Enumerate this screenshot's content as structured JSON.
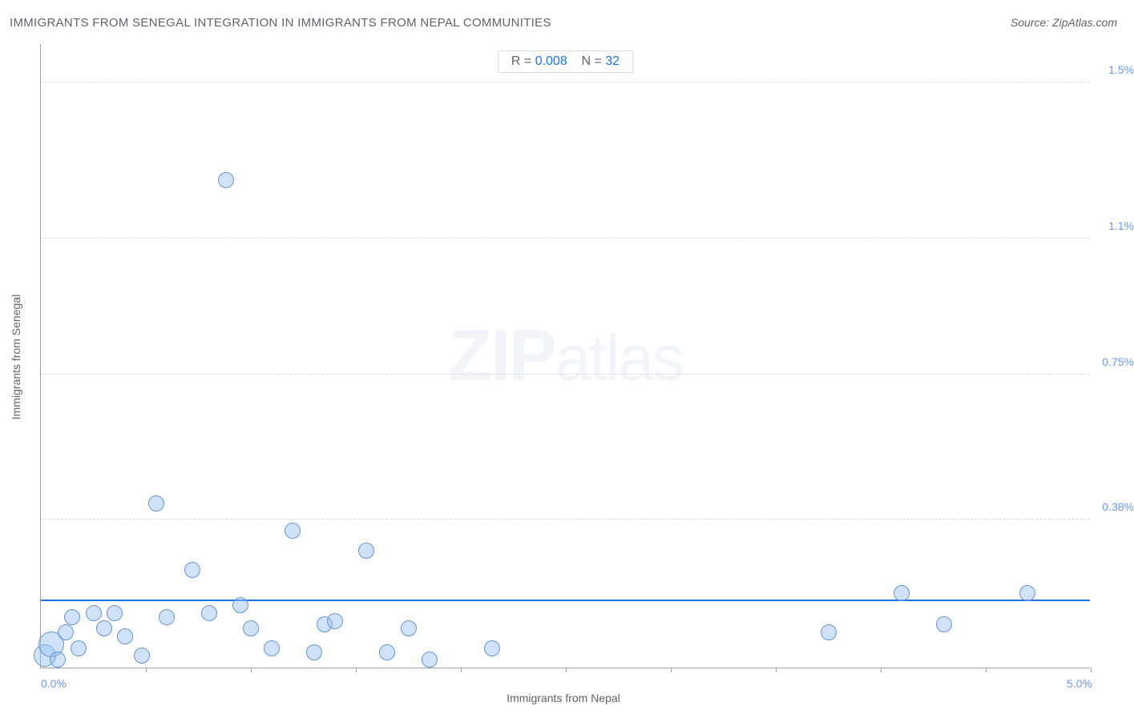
{
  "title": "IMMIGRANTS FROM SENEGAL INTEGRATION IN IMMIGRANTS FROM NEPAL COMMUNITIES",
  "source_prefix": "Source: ",
  "source_name": "ZipAtlas.com",
  "watermark_bold": "ZIP",
  "watermark_light": "atlas",
  "chart": {
    "type": "scatter",
    "xlabel": "Immigrants from Nepal",
    "ylabel": "Immigrants from Senegal",
    "xlim": [
      0.0,
      5.0
    ],
    "ylim": [
      0.0,
      1.6
    ],
    "x_ticks": [
      0.5,
      1.0,
      1.5,
      2.0,
      2.5,
      3.0,
      3.5,
      4.0,
      4.5,
      5.0
    ],
    "x_tick_labels": [
      {
        "x": 0.0,
        "label": "0.0%"
      },
      {
        "x": 5.0,
        "label": "5.0%"
      }
    ],
    "y_gridlines": [
      0.38,
      0.75,
      1.1,
      1.5
    ],
    "y_tick_labels": [
      {
        "y": 0.38,
        "label": "0.38%"
      },
      {
        "y": 0.75,
        "label": "0.75%"
      },
      {
        "y": 1.1,
        "label": "1.1%"
      },
      {
        "y": 1.5,
        "label": "1.5%"
      }
    ],
    "legend": {
      "r_label": "R =",
      "r_value": "0.008",
      "n_label": "N =",
      "n_value": "32"
    },
    "regression_y": 0.17,
    "bubble_fill": "rgba(150, 190, 240, 0.45)",
    "bubble_stroke": "#6794d0",
    "regression_color": "#1a73e8",
    "grid_color": "#dadce0",
    "axis_color": "#9aa0a6",
    "label_color": "#6a9af0",
    "points": [
      {
        "x": 0.02,
        "y": 0.03,
        "r": 14
      },
      {
        "x": 0.05,
        "y": 0.06,
        "r": 16
      },
      {
        "x": 0.08,
        "y": 0.02,
        "r": 10
      },
      {
        "x": 0.12,
        "y": 0.09,
        "r": 10
      },
      {
        "x": 0.15,
        "y": 0.13,
        "r": 10
      },
      {
        "x": 0.18,
        "y": 0.05,
        "r": 10
      },
      {
        "x": 0.25,
        "y": 0.14,
        "r": 10
      },
      {
        "x": 0.3,
        "y": 0.1,
        "r": 10
      },
      {
        "x": 0.35,
        "y": 0.14,
        "r": 10
      },
      {
        "x": 0.4,
        "y": 0.08,
        "r": 10
      },
      {
        "x": 0.48,
        "y": 0.03,
        "r": 10
      },
      {
        "x": 0.55,
        "y": 0.42,
        "r": 10
      },
      {
        "x": 0.6,
        "y": 0.13,
        "r": 10
      },
      {
        "x": 0.72,
        "y": 0.25,
        "r": 10
      },
      {
        "x": 0.8,
        "y": 0.14,
        "r": 10
      },
      {
        "x": 0.88,
        "y": 1.25,
        "r": 10
      },
      {
        "x": 0.95,
        "y": 0.16,
        "r": 10
      },
      {
        "x": 1.0,
        "y": 0.1,
        "r": 10
      },
      {
        "x": 1.1,
        "y": 0.05,
        "r": 10
      },
      {
        "x": 1.2,
        "y": 0.35,
        "r": 10
      },
      {
        "x": 1.3,
        "y": 0.04,
        "r": 10
      },
      {
        "x": 1.35,
        "y": 0.11,
        "r": 10
      },
      {
        "x": 1.4,
        "y": 0.12,
        "r": 10
      },
      {
        "x": 1.55,
        "y": 0.3,
        "r": 10
      },
      {
        "x": 1.65,
        "y": 0.04,
        "r": 10
      },
      {
        "x": 1.75,
        "y": 0.1,
        "r": 10
      },
      {
        "x": 1.85,
        "y": 0.02,
        "r": 10
      },
      {
        "x": 2.15,
        "y": 0.05,
        "r": 10
      },
      {
        "x": 3.75,
        "y": 0.09,
        "r": 10
      },
      {
        "x": 4.1,
        "y": 0.19,
        "r": 10
      },
      {
        "x": 4.3,
        "y": 0.11,
        "r": 10
      },
      {
        "x": 4.7,
        "y": 0.19,
        "r": 10
      }
    ]
  }
}
